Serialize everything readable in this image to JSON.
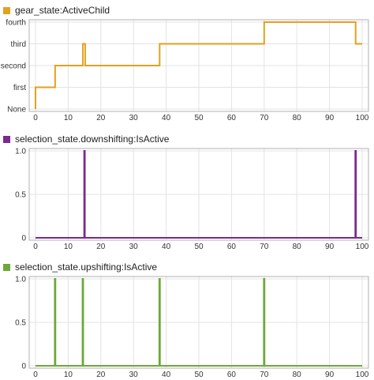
{
  "chart_data": [
    {
      "type": "line",
      "step": true,
      "title": "gear_state:ActiveChild",
      "color": "#e3a11e",
      "grid": true,
      "xlim": [
        0,
        100
      ],
      "x_ticks": [
        "0",
        "10",
        "20",
        "30",
        "40",
        "50",
        "60",
        "70",
        "80",
        "90",
        "100"
      ],
      "y_categories": [
        "None",
        "first",
        "second",
        "third",
        "fourth"
      ],
      "x": [
        0,
        0,
        6,
        6,
        14.5,
        14.5,
        15.2,
        15.2,
        38,
        38,
        70,
        70,
        98,
        98,
        100
      ],
      "y": [
        0,
        1,
        1,
        2,
        2,
        3,
        3,
        2,
        2,
        3,
        3,
        4,
        4,
        3,
        3
      ]
    },
    {
      "type": "line",
      "step": true,
      "title": "selection_state.downshifting:IsActive",
      "color": "#7b2a8e",
      "grid": true,
      "xlim": [
        0,
        100
      ],
      "ylim": [
        0,
        1
      ],
      "x_ticks": [
        "0",
        "10",
        "20",
        "30",
        "40",
        "50",
        "60",
        "70",
        "80",
        "90",
        "100"
      ],
      "y_ticks": [
        "0",
        "0.5",
        "1.0"
      ],
      "pulses_at_x": [
        15,
        98
      ]
    },
    {
      "type": "line",
      "step": true,
      "title": "selection_state.upshifting:IsActive",
      "color": "#6ea839",
      "grid": true,
      "xlim": [
        0,
        100
      ],
      "ylim": [
        0,
        1
      ],
      "x_ticks": [
        "0",
        "10",
        "20",
        "30",
        "40",
        "50",
        "60",
        "70",
        "80",
        "90",
        "100"
      ],
      "y_ticks": [
        "0",
        "0.5",
        "1.0"
      ],
      "pulses_at_x": [
        6,
        14.5,
        38,
        70
      ]
    }
  ]
}
